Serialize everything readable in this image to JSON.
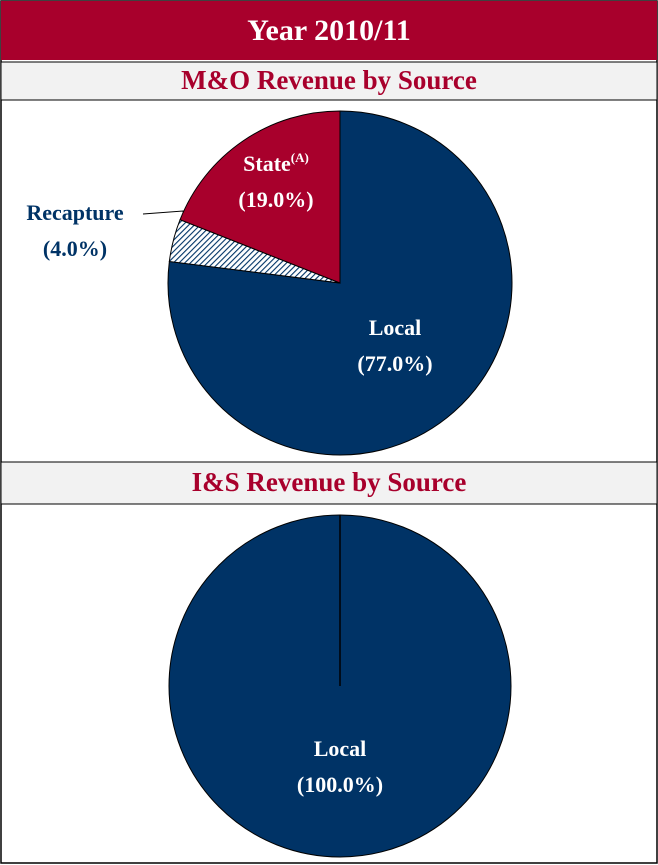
{
  "header": "Year 2010/11",
  "chart_data": [
    {
      "type": "pie",
      "title": "M&O Revenue by Source",
      "categories": [
        "Local",
        "Recapture",
        "State"
      ],
      "footnote_marks": [
        null,
        null,
        "(A)"
      ],
      "values": [
        77,
        4,
        19
      ],
      "value_labels": [
        "(77.0%)",
        "(4.0%)",
        "(19.0%)"
      ],
      "colors": [
        "#003366",
        "#003366",
        "#a8002c"
      ],
      "hatched": [
        false,
        true,
        false
      ]
    },
    {
      "type": "pie",
      "title": "I&S Revenue by Source",
      "categories": [
        "Local"
      ],
      "values": [
        100
      ],
      "value_labels": [
        "(100.0%)"
      ],
      "colors": [
        "#003366"
      ],
      "hatched": [
        false
      ]
    }
  ]
}
